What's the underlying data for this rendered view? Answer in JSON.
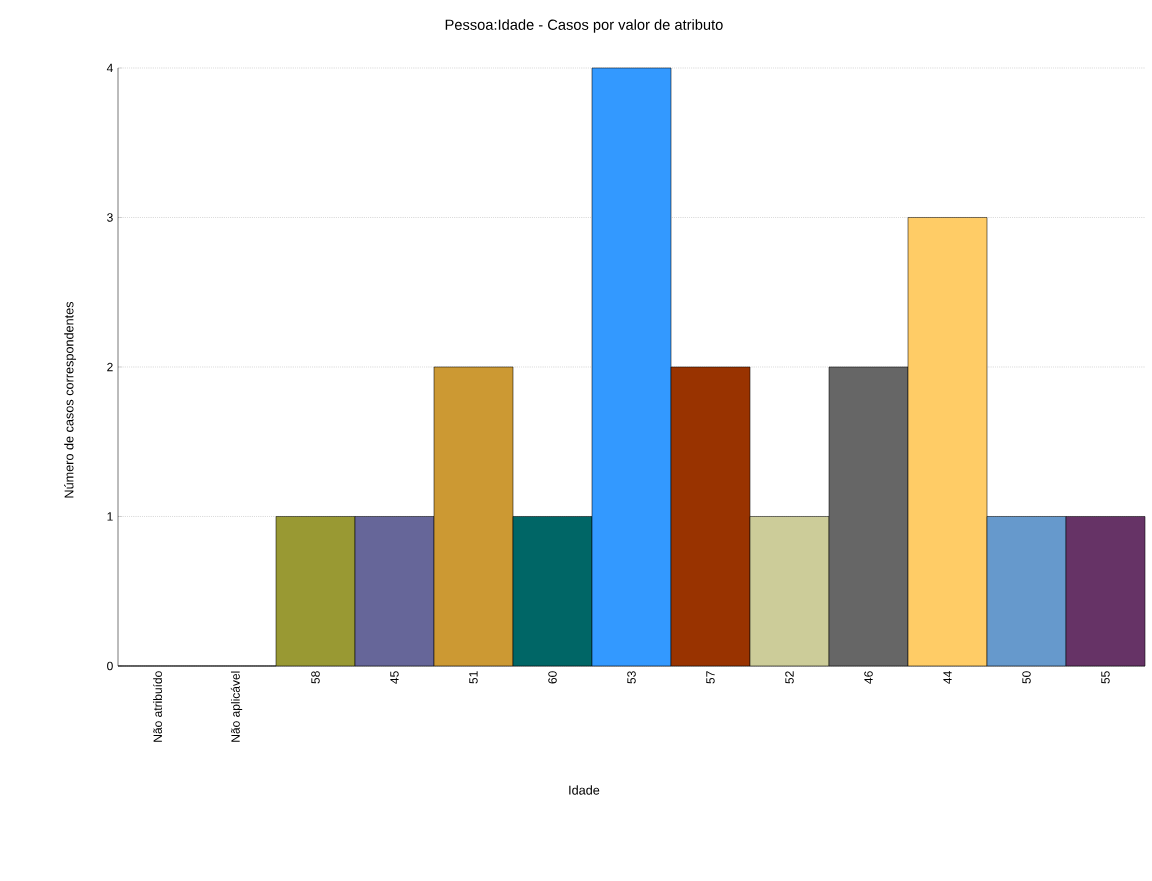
{
  "chart_data": {
    "type": "bar",
    "title": "Pessoa:Idade - Casos por valor de atributo",
    "xlabel": "Idade",
    "ylabel": "Número de casos correspondentes",
    "categories": [
      "Não atribuído",
      "Não aplicável",
      "58",
      "45",
      "51",
      "60",
      "53",
      "57",
      "52",
      "46",
      "44",
      "50",
      "55"
    ],
    "values": [
      0,
      0,
      1,
      1,
      2,
      1,
      4,
      2,
      1,
      2,
      3,
      1,
      1
    ],
    "colors": [
      "#ffffff",
      "#ffffff",
      "#999933",
      "#666699",
      "#cc9933",
      "#006666",
      "#3399ff",
      "#993300",
      "#cccc99",
      "#666666",
      "#ffcc66",
      "#6699cc",
      "#663366"
    ],
    "ylim": [
      0,
      4
    ],
    "yticks": [
      0,
      1,
      2,
      3,
      4
    ],
    "grid": "y"
  }
}
